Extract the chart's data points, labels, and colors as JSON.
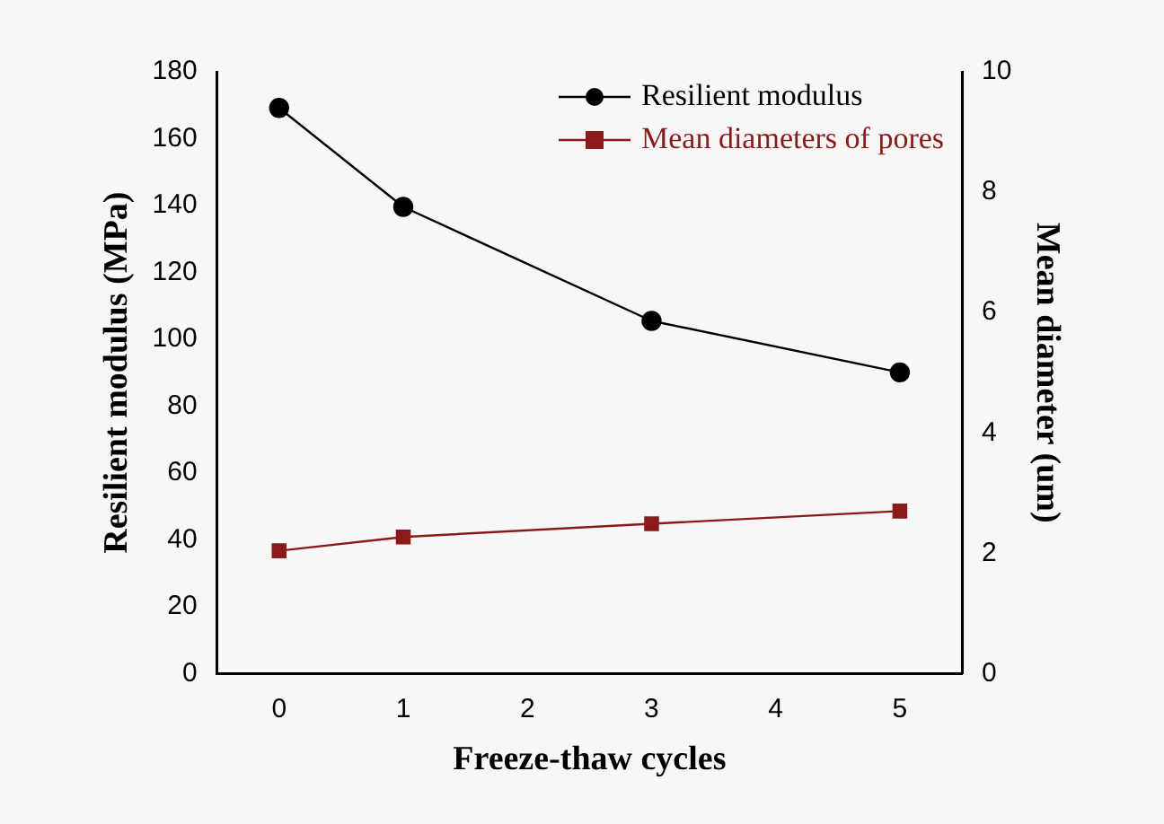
{
  "chart_data": {
    "type": "line",
    "xlabel": "Freeze-thaw cycles",
    "ylabel": "Resilient modulus (MPa)",
    "y2label": "Mean diameter (um)",
    "x": [
      0,
      1,
      3,
      5
    ],
    "series": [
      {
        "name": "Resilient modulus",
        "color": "#000000",
        "marker": "circle",
        "values": [
          169.2,
          139.6,
          105.5,
          90.1
        ]
      },
      {
        "name": "Mean diameters of pores",
        "color": "#8b1a1a",
        "marker": "square",
        "axis": "y2",
        "values": [
          2.04,
          2.27,
          2.49,
          2.7
        ]
      }
    ],
    "xlim": [
      -0.5,
      5.5
    ],
    "xticks": [
      0,
      1,
      2,
      3,
      4,
      5
    ],
    "ylim": [
      0,
      180
    ],
    "yticks": [
      0,
      20,
      40,
      60,
      80,
      100,
      120,
      140,
      160,
      180
    ],
    "y2lim": [
      0,
      10
    ],
    "y2ticks": [
      0,
      2,
      4,
      6,
      8,
      10
    ],
    "grid": false,
    "legend": "top right",
    "line_style": "solid"
  }
}
